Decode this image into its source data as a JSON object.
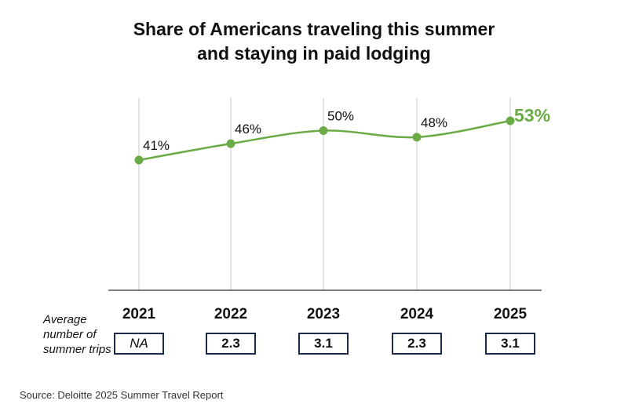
{
  "chart_data": {
    "type": "line",
    "title_lines": [
      "Share of Americans traveling this summer",
      "and staying in paid lodging"
    ],
    "categories": [
      "2021",
      "2022",
      "2023",
      "2024",
      "2025"
    ],
    "values": [
      41,
      46,
      50,
      48,
      53
    ],
    "data_labels": [
      "41%",
      "46%",
      "50%",
      "48%",
      "53%"
    ],
    "ylim": [
      0,
      60
    ],
    "series_color": "#6aab45",
    "highlight_label_color": "#6aab45",
    "grid": "vertical",
    "trips_label_lines": [
      "Average",
      "number of",
      "summer trips"
    ],
    "trips_values": [
      "NA",
      "2.3",
      "3.1",
      "2.3",
      "3.1"
    ],
    "source": "Source: Deloitte 2025 Summer Travel Report"
  }
}
